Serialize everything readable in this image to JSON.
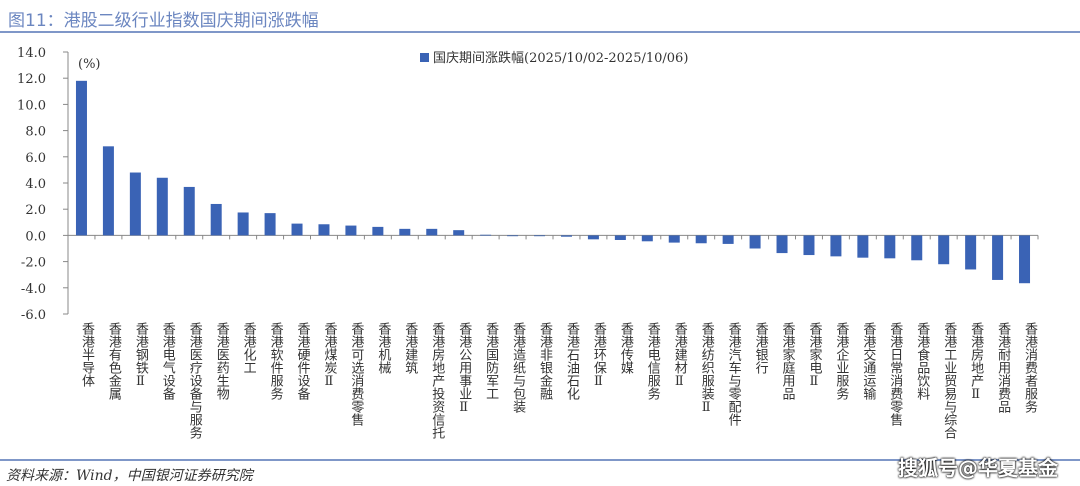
{
  "title": "图11：港股二级行业指数国庆期间涨跌幅",
  "source": "资料来源：Wind，中国银河证券研究院",
  "watermark": "搜狐号@华夏基金",
  "chart_data": {
    "type": "bar",
    "unit_label": "(%)",
    "ylim": [
      -6,
      14
    ],
    "yticks": [
      "14.0",
      "12.0",
      "10.0",
      "8.0",
      "6.0",
      "4.0",
      "2.0",
      "0.0",
      "-2.0",
      "-4.0",
      "-6.0"
    ],
    "legend_position": "top-right",
    "bar_color": "#3a63b5",
    "categories": [
      "香港半导体",
      "香港有色金属",
      "香港钢铁Ⅱ",
      "香港电气设备",
      "香港医疗设备与服务",
      "香港医药生物",
      "香港化工",
      "香港软件服务",
      "香港硬件设备",
      "香港煤炭Ⅱ",
      "香港可选消费零售",
      "香港机械",
      "香港建筑",
      "香港房地产投资信托",
      "香港公用事业Ⅱ",
      "香港国防军工",
      "香港造纸与包装",
      "香港非银金融",
      "香港石油石化",
      "香港环保Ⅱ",
      "香港传媒",
      "香港电信服务",
      "香港建材Ⅱ",
      "香港纺织服装Ⅱ",
      "香港汽车与零配件",
      "香港银行",
      "香港家庭用品",
      "香港家电Ⅱ",
      "香港企业服务",
      "香港交通运输",
      "香港日常消费零售",
      "香港食品饮料",
      "香港工业贸易与综合",
      "香港房地产Ⅱ",
      "香港耐用消费品",
      "香港消费者服务"
    ],
    "series": [
      {
        "name": "国庆期间涨跌幅(2025/10/02-2025/10/06)",
        "values": [
          11.8,
          6.8,
          4.8,
          4.4,
          3.7,
          2.4,
          1.75,
          1.7,
          0.9,
          0.85,
          0.75,
          0.65,
          0.5,
          0.5,
          0.4,
          0.05,
          -0.02,
          -0.05,
          -0.1,
          -0.3,
          -0.35,
          -0.45,
          -0.55,
          -0.6,
          -0.65,
          -1.0,
          -1.35,
          -1.5,
          -1.6,
          -1.7,
          -1.75,
          -1.9,
          -2.2,
          -2.6,
          -3.4,
          -3.65
        ]
      }
    ]
  }
}
